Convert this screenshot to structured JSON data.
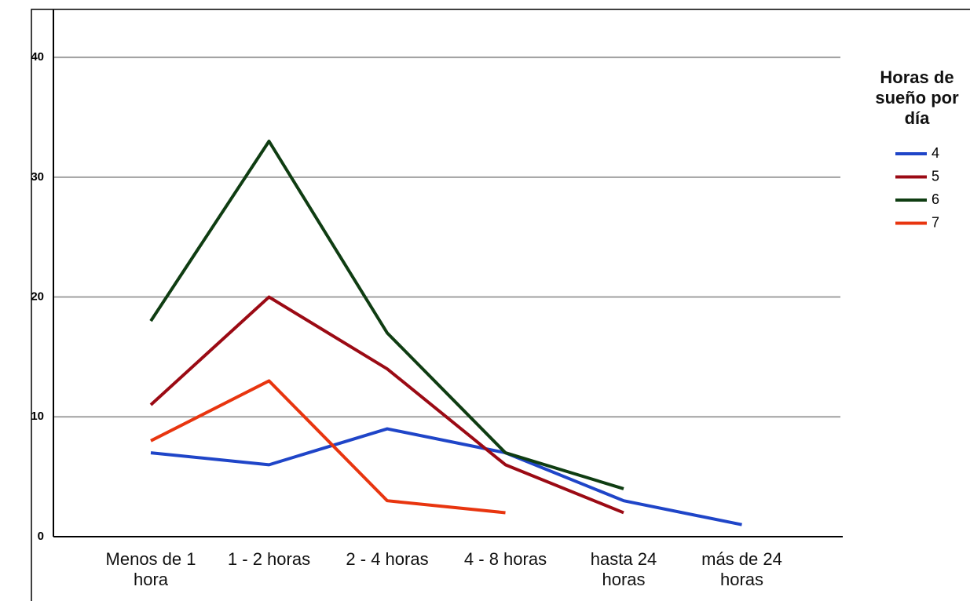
{
  "chart_data": {
    "type": "line",
    "categories": [
      "Menos de 1 hora",
      "1 - 2 horas",
      "2 - 4 horas",
      "4 - 8 horas",
      "hasta 24 horas",
      "más de 24 horas"
    ],
    "legend_title": "Horas de sueño por día",
    "series": [
      {
        "name": "4",
        "color": "#1f45c8",
        "values": [
          7,
          6,
          9,
          7,
          3,
          1
        ]
      },
      {
        "name": "5",
        "color": "#9b0a14",
        "values": [
          11,
          20,
          14,
          6,
          2,
          null
        ]
      },
      {
        "name": "6",
        "color": "#0f3d12",
        "values": [
          18,
          33,
          17,
          7,
          4,
          null
        ]
      },
      {
        "name": "7",
        "color": "#e8350f",
        "values": [
          8,
          13,
          3,
          2,
          null,
          null
        ]
      }
    ],
    "ylim": [
      0,
      44
    ],
    "yticks": [
      0,
      10,
      20,
      30,
      40
    ],
    "grid": true,
    "legend": "right"
  }
}
